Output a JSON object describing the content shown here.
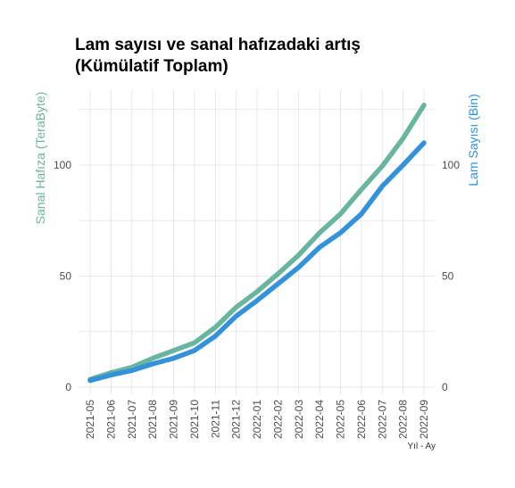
{
  "chart_data": {
    "type": "line",
    "title_lines": [
      "Lam sayısı ve sanal hafızadaki artış",
      "(Kümülatif Toplam)"
    ],
    "xlabel": "Yıl - Ay",
    "ylabel_left": "Sanal Hafıza (TeraByte)",
    "ylabel_right": "Lam Sayısı (Bin)",
    "x": [
      "2021-05",
      "2021-06",
      "2021-07",
      "2021-08",
      "2021-09",
      "2021-10",
      "2021-11",
      "2021-12",
      "2022-01",
      "2022-02",
      "2022-03",
      "2022-04",
      "2022-05",
      "2022-06",
      "2022-07",
      "2022-08",
      "2022-09"
    ],
    "ylim": [
      0,
      128
    ],
    "yticks": [
      0,
      50,
      100
    ],
    "ytick_labels": [
      "0",
      "50",
      "100"
    ],
    "grid": true,
    "legend": "none",
    "series": [
      {
        "axis": "left",
        "color": "#6ab5a0",
        "values": [
          3.5,
          6.5,
          9,
          13,
          16.5,
          20,
          27,
          36,
          43,
          51,
          59.5,
          69.5,
          78,
          89,
          99.5,
          112,
          127
        ]
      },
      {
        "axis": "right",
        "color": "#3492da",
        "values": [
          3,
          5.5,
          7.5,
          10.5,
          13,
          16.5,
          23,
          32,
          39,
          46.5,
          54,
          63,
          69.5,
          78,
          90.5,
          100,
          110
        ]
      }
    ]
  }
}
